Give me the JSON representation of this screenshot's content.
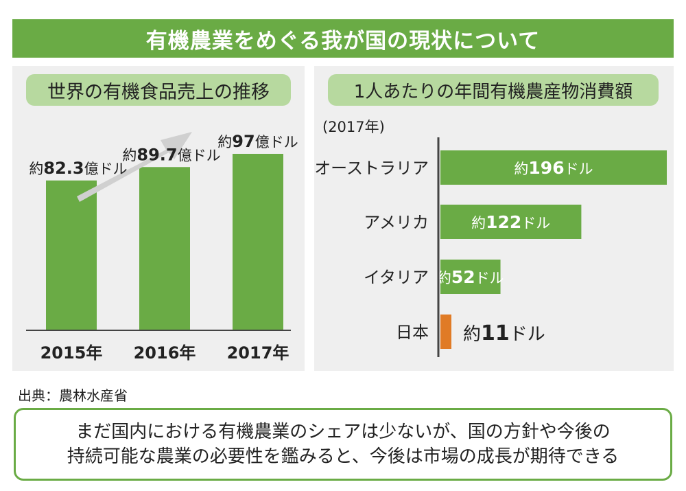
{
  "title": "有機農業をめぐる我が国の現状について",
  "colors": {
    "banner": "#6aab45",
    "bar_green": "#6aab45",
    "bar_japan": "#e07b26",
    "pill": "#b7d99f",
    "panel": "#efefef",
    "arrow": "#d0d0d0"
  },
  "chart_data": [
    {
      "type": "bar",
      "title": "世界の有機食品売上の推移",
      "categories": [
        "2015年",
        "2016年",
        "2017年"
      ],
      "values": [
        82.3,
        89.7,
        97
      ],
      "unit": "億ドル",
      "labels": [
        {
          "prefix": "約",
          "value": "82.3",
          "unit": "億ドル"
        },
        {
          "prefix": "約",
          "value": "89.7",
          "unit": "億ドル"
        },
        {
          "prefix": "約",
          "value": "97",
          "unit": "億ドル"
        }
      ],
      "trend_arrow": true
    },
    {
      "type": "bar",
      "orientation": "horizontal",
      "title": "1人あたりの年間有機農産物消費額",
      "subtitle": "(2017年)",
      "categories": [
        "オーストラリア",
        "アメリカ",
        "イタリア",
        "日本"
      ],
      "values": [
        196,
        122,
        52,
        11
      ],
      "unit": "ドル",
      "highlight": "日本",
      "labels": [
        {
          "prefix": "約",
          "value": "196",
          "unit": "ドル"
        },
        {
          "prefix": "約",
          "value": "122",
          "unit": "ドル"
        },
        {
          "prefix": "約",
          "value": "52",
          "unit": "ドル"
        },
        {
          "prefix": "約",
          "value": "11",
          "unit": "ドル"
        }
      ]
    }
  ],
  "source": "出典：農林水産省",
  "note": {
    "line1": "まだ国内における有機農業のシェアは少ないが、国の方針や今後の",
    "line2": "持続可能な農業の必要性を鑑みると、今後は市場の成長が期待できる"
  }
}
